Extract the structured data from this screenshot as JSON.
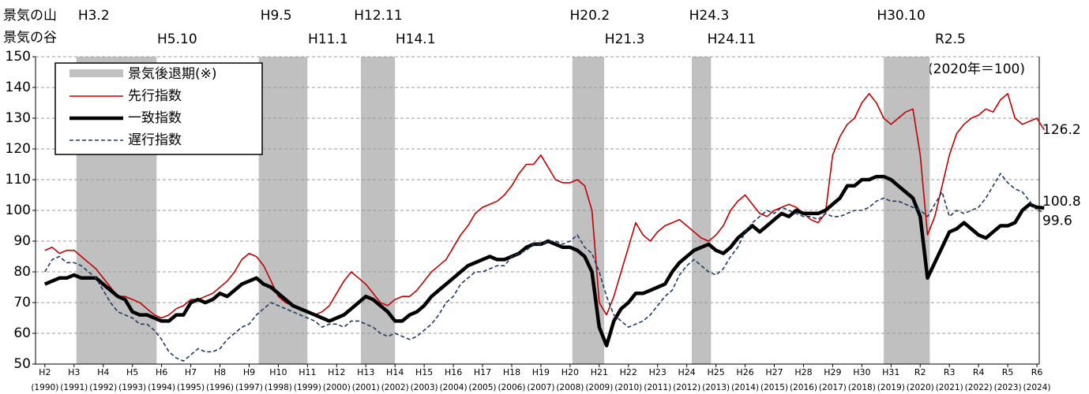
{
  "chart_data": {
    "type": "line",
    "peak_header": "景気の山",
    "trough_header": "景気の谷",
    "annotation": "(2020年＝100)",
    "recession_label": "景気後退期(※)",
    "recession_color": "#c0c0c0",
    "recessions": [
      {
        "peak": "H3.2",
        "trough": "H5.10",
        "start": 1991.08,
        "end": 1993.83
      },
      {
        "peak": "H9.5",
        "trough": "H11.1",
        "start": 1997.33,
        "end": 1999.0
      },
      {
        "peak": "H12.11",
        "trough": "H14.1",
        "start": 2000.83,
        "end": 2002.0
      },
      {
        "peak": "H20.2",
        "trough": "H21.3",
        "start": 2008.08,
        "end": 2009.17
      },
      {
        "peak": "H24.3",
        "trough": "H24.11",
        "start": 2012.17,
        "end": 2012.83
      },
      {
        "peak": "H30.10",
        "trough": "R2.5",
        "start": 2018.75,
        "end": 2020.33
      }
    ],
    "x": [
      1990,
      1990.25,
      1990.5,
      1990.75,
      1991,
      1991.25,
      1991.5,
      1991.75,
      1992,
      1992.25,
      1992.5,
      1992.75,
      1993,
      1993.25,
      1993.5,
      1993.75,
      1994,
      1994.25,
      1994.5,
      1994.75,
      1995,
      1995.25,
      1995.5,
      1995.75,
      1996,
      1996.25,
      1996.5,
      1996.75,
      1997,
      1997.25,
      1997.5,
      1997.75,
      1998,
      1998.25,
      1998.5,
      1998.75,
      1999,
      1999.25,
      1999.5,
      1999.75,
      2000,
      2000.25,
      2000.5,
      2000.75,
      2001,
      2001.25,
      2001.5,
      2001.75,
      2002,
      2002.25,
      2002.5,
      2002.75,
      2003,
      2003.25,
      2003.5,
      2003.75,
      2004,
      2004.25,
      2004.5,
      2004.75,
      2005,
      2005.25,
      2005.5,
      2005.75,
      2006,
      2006.25,
      2006.5,
      2006.75,
      2007,
      2007.25,
      2007.5,
      2007.75,
      2008,
      2008.25,
      2008.5,
      2008.75,
      2009,
      2009.25,
      2009.5,
      2009.75,
      2010,
      2010.25,
      2010.5,
      2010.75,
      2011,
      2011.25,
      2011.5,
      2011.75,
      2012,
      2012.25,
      2012.5,
      2012.75,
      2013,
      2013.25,
      2013.5,
      2013.75,
      2014,
      2014.25,
      2014.5,
      2014.75,
      2015,
      2015.25,
      2015.5,
      2015.75,
      2016,
      2016.25,
      2016.5,
      2016.75,
      2017,
      2017.25,
      2017.5,
      2017.75,
      2018,
      2018.25,
      2018.5,
      2018.75,
      2019,
      2019.25,
      2019.5,
      2019.75,
      2020,
      2020.25,
      2020.5,
      2020.75,
      2021,
      2021.25,
      2021.5,
      2021.75,
      2022,
      2022.25,
      2022.5,
      2022.75,
      2023,
      2023.25,
      2023.5,
      2023.75,
      2024,
      2024.25
    ],
    "series": [
      {
        "name": "先行指数",
        "color": "#c00000",
        "dash": "solid",
        "end_label": 126.2,
        "values": [
          87,
          88,
          86,
          87,
          87,
          85,
          83,
          81,
          78,
          75,
          72,
          72,
          71,
          70,
          68,
          66,
          65,
          66,
          68,
          69,
          71,
          71,
          72,
          73,
          75,
          77,
          80,
          84,
          86,
          85,
          82,
          77,
          72,
          70,
          69,
          68,
          67,
          66,
          67,
          69,
          73,
          77,
          80,
          78,
          76,
          73,
          70,
          69,
          71,
          72,
          72,
          74,
          77,
          80,
          82,
          84,
          88,
          92,
          95,
          99,
          101,
          102,
          103,
          105,
          108,
          112,
          115,
          115,
          118,
          114,
          110,
          109,
          109,
          110,
          108,
          100,
          70,
          66,
          72,
          80,
          88,
          96,
          92,
          90,
          93,
          95,
          96,
          97,
          95,
          93,
          91,
          90,
          92,
          95,
          100,
          103,
          105,
          102,
          99,
          98,
          100,
          101,
          102,
          101,
          99,
          97,
          96,
          99,
          118,
          124,
          128,
          130,
          135,
          138,
          135,
          130,
          128,
          130,
          132,
          133,
          118,
          92,
          98,
          108,
          118,
          125,
          128,
          130,
          131,
          133,
          132,
          136,
          138,
          130,
          128,
          129,
          130,
          126.2
        ]
      },
      {
        "name": "一致指数",
        "color": "#000000",
        "dash": "solid",
        "end_label": 100.8,
        "values": [
          76,
          77,
          78,
          78,
          79,
          78,
          78,
          78,
          76,
          74,
          72,
          71,
          67,
          66,
          66,
          65,
          64,
          64,
          66,
          66,
          70,
          71,
          70,
          71,
          73,
          72,
          74,
          76,
          77,
          78,
          76,
          75,
          73,
          71,
          69,
          68,
          67,
          66,
          65,
          64,
          65,
          66,
          68,
          70,
          72,
          71,
          69,
          67,
          64,
          64,
          66,
          67,
          69,
          72,
          74,
          76,
          78,
          80,
          82,
          83,
          84,
          85,
          84,
          84,
          85,
          86,
          88,
          89,
          89,
          90,
          89,
          88,
          88,
          87,
          85,
          80,
          62,
          56,
          64,
          68,
          70,
          73,
          73,
          74,
          75,
          76,
          80,
          83,
          85,
          87,
          88,
          89,
          87,
          86,
          88,
          91,
          93,
          95,
          93,
          95,
          97,
          99,
          98,
          100,
          99,
          99,
          99,
          100,
          102,
          104,
          108,
          108,
          110,
          110,
          111,
          111,
          110,
          108,
          106,
          104,
          98,
          78,
          83,
          88,
          93,
          94,
          96,
          94,
          92,
          91,
          93,
          95,
          95,
          96,
          100,
          102,
          101,
          100.8
        ]
      },
      {
        "name": "遅行指数",
        "color": "#1f3864",
        "dash": "dashed",
        "end_label": 99.6,
        "values": [
          80,
          84,
          85,
          83,
          83,
          82,
          80,
          78,
          74,
          70,
          67,
          66,
          65,
          63,
          63,
          61,
          58,
          54,
          52,
          51,
          53,
          55,
          54,
          54,
          55,
          58,
          60,
          62,
          63,
          66,
          68,
          70,
          69,
          68,
          67,
          66,
          65,
          64,
          62,
          63,
          63,
          62,
          64,
          64,
          63,
          62,
          60,
          59,
          60,
          59,
          58,
          59,
          61,
          63,
          66,
          70,
          72,
          76,
          78,
          80,
          80,
          81,
          82,
          82,
          85,
          86,
          87,
          89,
          89,
          90,
          90,
          89,
          90,
          92,
          88,
          86,
          80,
          72,
          66,
          64,
          62,
          63,
          64,
          66,
          69,
          72,
          74,
          79,
          82,
          84,
          82,
          80,
          79,
          81,
          85,
          88,
          93,
          96,
          98,
          100,
          99,
          101,
          100,
          99,
          98,
          98,
          97,
          99,
          98,
          98,
          99,
          100,
          100,
          101,
          103,
          104,
          103,
          103,
          102,
          101,
          100,
          98,
          102,
          106,
          98,
          100,
          99,
          100,
          101,
          104,
          108,
          112,
          109,
          107,
          106,
          103,
          100,
          99.6
        ]
      }
    ],
    "end_label_color": "#a0522d",
    "xlim": [
      1989.68,
      2024.08
    ],
    "xticks": [
      {
        "value": 1990,
        "label": "H2"
      },
      {
        "value": 1991,
        "label": "H3"
      },
      {
        "value": 1992,
        "label": "H4"
      },
      {
        "value": 1993,
        "label": "H5"
      },
      {
        "value": 1994,
        "label": "H6"
      },
      {
        "value": 1995,
        "label": "H7"
      },
      {
        "value": 1996,
        "label": "H8"
      },
      {
        "value": 1997,
        "label": "H9"
      },
      {
        "value": 1998,
        "label": "H10"
      },
      {
        "value": 1999,
        "label": "H11"
      },
      {
        "value": 2000,
        "label": "H12"
      },
      {
        "value": 2001,
        "label": "H13"
      },
      {
        "value": 2002,
        "label": "H14"
      },
      {
        "value": 2003,
        "label": "H15"
      },
      {
        "value": 2004,
        "label": "H16"
      },
      {
        "value": 2005,
        "label": "H17"
      },
      {
        "value": 2006,
        "label": "H18"
      },
      {
        "value": 2007,
        "label": "H19"
      },
      {
        "value": 2008,
        "label": "H20"
      },
      {
        "value": 2009,
        "label": "H21"
      },
      {
        "value": 2010,
        "label": "H22"
      },
      {
        "value": 2011,
        "label": "H23"
      },
      {
        "value": 2012,
        "label": "H24"
      },
      {
        "value": 2013,
        "label": "H25"
      },
      {
        "value": 2014,
        "label": "H26"
      },
      {
        "value": 2015,
        "label": "H27"
      },
      {
        "value": 2016,
        "label": "H28"
      },
      {
        "value": 2017,
        "label": "H29"
      },
      {
        "value": 2018,
        "label": "H30"
      },
      {
        "value": 2019,
        "label": "H31"
      },
      {
        "value": 2020,
        "label": "R2"
      },
      {
        "value": 2021,
        "label": "R3"
      },
      {
        "value": 2022,
        "label": "R4"
      },
      {
        "value": 2023,
        "label": "R5"
      },
      {
        "value": 2024,
        "label": "R6"
      }
    ],
    "xtick_years": [
      "(1990)",
      "(1991)",
      "(1992)",
      "(1993)",
      "(1994)",
      "(1995)",
      "(1996)",
      "(1997)",
      "(1998)",
      "(1999)",
      "(2000)",
      "(2001)",
      "(2002)",
      "(2003)",
      "(2004)",
      "(2005)",
      "(2006)",
      "(2007)",
      "(2008)",
      "(2009)",
      "(2010)",
      "(2011)",
      "(2012)",
      "(2013)",
      "(2014)",
      "(2015)",
      "(2016)",
      "(2017)",
      "(2018)",
      "(2019)",
      "(2020)",
      "(2021)",
      "(2022)",
      "(2023)",
      "(2024)"
    ],
    "ylim": [
      50,
      150
    ],
    "yticks": [
      50,
      60,
      70,
      80,
      90,
      100,
      110,
      120,
      130,
      140,
      150
    ],
    "grid": true
  }
}
